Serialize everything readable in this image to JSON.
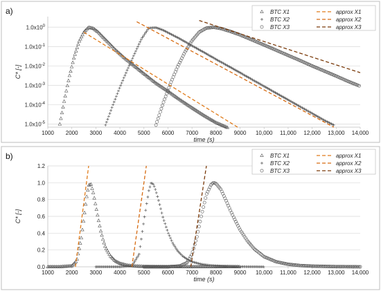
{
  "chart_data": [
    {
      "panel": "a)",
      "type": "scatter",
      "xlabel": "time (s)",
      "ylabel": "C* [-]",
      "xlim": [
        1000,
        14000
      ],
      "x_ticks": [
        1000,
        2000,
        3000,
        4000,
        5000,
        6000,
        7000,
        8000,
        9000,
        10000,
        11000,
        12000,
        13000,
        14000
      ],
      "x_tick_labels": [
        "1000",
        "2000",
        "3000",
        "4000",
        "5000",
        "6000",
        "7000",
        "8000",
        "9000",
        "10,000",
        "11,000",
        "12,000",
        "13,000",
        "14,000"
      ],
      "y_scale": "log",
      "ylim": [
        7e-06,
        3.5
      ],
      "y_ticks": [
        1e-05,
        0.0001,
        0.001,
        0.01,
        0.1,
        1
      ],
      "y_tick_labels": [
        {
          "base": "1.0x10",
          "exp": "-5"
        },
        {
          "base": "1.0x10",
          "exp": "-4"
        },
        {
          "base": "1.0x10",
          "exp": "-3"
        },
        {
          "base": "1.0x10",
          "exp": "-2"
        },
        {
          "base": "1.0x10",
          "exp": "-1"
        },
        {
          "base": "1.0x10",
          "exp": "0"
        }
      ],
      "grid": "horizontal",
      "legend_position": "top-right",
      "series": [
        {
          "name": "BTC X1",
          "kind": "markers",
          "marker": "triangle",
          "color": "#555555",
          "x": [
            1500,
            1700,
            1900,
            2100,
            2300,
            2500,
            2700,
            2900,
            3100,
            3300,
            3500,
            3800,
            4200,
            4600,
            5000,
            5500,
            6000,
            6500,
            7000,
            7500,
            8000,
            8500,
            8900
          ],
          "y": [
            1e-05,
            0.0002,
            0.003,
            0.03,
            0.18,
            0.55,
            0.98,
            0.85,
            0.55,
            0.3,
            0.17,
            0.07,
            0.025,
            0.01,
            0.004,
            0.0013,
            0.0005,
            0.00018,
            7e-05,
            2.8e-05,
            1.2e-05,
            6.5e-06,
            5e-06
          ]
        },
        {
          "name": "BTC X2",
          "kind": "markers",
          "marker": "plus",
          "color": "#555555",
          "x": [
            3400,
            3700,
            4000,
            4300,
            4600,
            4900,
            5200,
            5500,
            5800,
            6100,
            6500,
            7000,
            7500,
            8000,
            8500,
            9000,
            9500,
            10000,
            10500,
            11000,
            11500,
            12000,
            12500,
            12900
          ],
          "y": [
            9e-06,
            9e-05,
            0.0008,
            0.006,
            0.04,
            0.25,
            0.9,
            0.95,
            0.7,
            0.45,
            0.25,
            0.11,
            0.05,
            0.022,
            0.01,
            0.0045,
            0.002,
            0.0009,
            0.0004,
            0.00018,
            8e-05,
            3.6e-05,
            1.6e-05,
            9e-06
          ]
        },
        {
          "name": "BTC X3",
          "kind": "markers",
          "marker": "circle",
          "color": "#555555",
          "x": [
            5500,
            5800,
            6100,
            6400,
            6700,
            7000,
            7300,
            7600,
            7900,
            8200,
            8600,
            9000,
            9500,
            10000,
            10500,
            11000,
            11500,
            12000,
            12500,
            13000,
            13500,
            14000
          ],
          "y": [
            9e-06,
            0.00012,
            0.0012,
            0.009,
            0.05,
            0.2,
            0.55,
            0.9,
            0.98,
            0.85,
            0.6,
            0.4,
            0.22,
            0.12,
            0.065,
            0.035,
            0.019,
            0.01,
            0.0055,
            0.003,
            0.0016,
            0.0009
          ]
        },
        {
          "name": "approx X1",
          "kind": "dashed",
          "color": "#e07b1a",
          "x": [
            2500,
            8900
          ],
          "y": [
            0.55,
            6e-06
          ]
        },
        {
          "name": "approx X2",
          "kind": "dashed",
          "color": "#d66a10",
          "x": [
            4700,
            12900
          ],
          "y": [
            1.9,
            7e-06
          ]
        },
        {
          "name": "approx X3",
          "kind": "dashed",
          "color": "#7a3a0a",
          "x": [
            7300,
            14000
          ],
          "y": [
            2.2,
            0.0045
          ]
        }
      ]
    },
    {
      "panel": "b)",
      "type": "scatter",
      "xlabel": "time (s)",
      "ylabel": "C* [-]",
      "xlim": [
        1000,
        14000
      ],
      "x_ticks": [
        1000,
        2000,
        3000,
        4000,
        5000,
        6000,
        7000,
        8000,
        9000,
        10000,
        11000,
        12000,
        13000,
        14000
      ],
      "x_tick_labels": [
        "1000",
        "2000",
        "3000",
        "4000",
        "5000",
        "6000",
        "7000",
        "8000",
        "9000",
        "10,000",
        "11,000",
        "12,000",
        "13,000",
        "14,000"
      ],
      "y_scale": "linear",
      "ylim": [
        0,
        1.2
      ],
      "y_ticks": [
        0,
        0.2,
        0.4,
        0.6,
        0.8,
        1.0,
        1.2
      ],
      "y_tick_labels": [
        "0.0",
        "0.2",
        "0.4",
        "0.6",
        "0.8",
        "1.0",
        "1.2"
      ],
      "grid": "horizontal",
      "legend_position": "top-right",
      "series": [
        {
          "name": "BTC X1",
          "kind": "markers",
          "marker": "triangle",
          "color": "#555555",
          "x": [
            1000,
            1500,
            2000,
            2200,
            2400,
            2600,
            2700,
            2800,
            2900,
            3000,
            3100,
            3200,
            3300,
            3400,
            3600,
            3800,
            4000,
            4300,
            4600,
            5000,
            5500,
            6000,
            7000,
            8000,
            9000
          ],
          "y": [
            0,
            0,
            0.01,
            0.07,
            0.35,
            0.8,
            0.97,
            0.98,
            0.87,
            0.72,
            0.57,
            0.43,
            0.32,
            0.23,
            0.13,
            0.07,
            0.04,
            0.018,
            0.008,
            0.003,
            0.001,
            0,
            0,
            0,
            0
          ]
        },
        {
          "name": "BTC X2",
          "kind": "markers",
          "marker": "plus",
          "color": "#555555",
          "x": [
            3000,
            4000,
            4500,
            4800,
            5000,
            5200,
            5300,
            5400,
            5500,
            5600,
            5700,
            5800,
            6000,
            6200,
            6400,
            6600,
            6800,
            7000,
            7400,
            7800,
            8200,
            9000,
            10000
          ],
          "y": [
            0,
            0,
            0.01,
            0.15,
            0.55,
            0.9,
            1.0,
            0.98,
            0.9,
            0.8,
            0.69,
            0.58,
            0.41,
            0.28,
            0.19,
            0.13,
            0.09,
            0.06,
            0.03,
            0.015,
            0.008,
            0.002,
            0
          ]
        },
        {
          "name": "BTC X3",
          "kind": "markers",
          "marker": "circle",
          "color": "#555555",
          "x": [
            5000,
            6000,
            6500,
            6800,
            7000,
            7200,
            7400,
            7600,
            7800,
            7900,
            8000,
            8200,
            8400,
            8600,
            8800,
            9000,
            9300,
            9600,
            10000,
            10500,
            11000,
            11500,
            12000,
            13000,
            14000
          ],
          "y": [
            0,
            0,
            0.01,
            0.05,
            0.15,
            0.35,
            0.62,
            0.86,
            0.98,
            1.0,
            0.99,
            0.92,
            0.8,
            0.67,
            0.55,
            0.44,
            0.31,
            0.21,
            0.12,
            0.06,
            0.03,
            0.015,
            0.008,
            0.002,
            0
          ]
        },
        {
          "name": "approx X1",
          "kind": "dashed",
          "color": "#e07b1a",
          "x": [
            2150,
            2700
          ],
          "y": [
            0,
            1.22
          ]
        },
        {
          "name": "approx X2",
          "kind": "dashed",
          "color": "#d66a10",
          "x": [
            4500,
            5100
          ],
          "y": [
            0,
            1.22
          ]
        },
        {
          "name": "approx X3",
          "kind": "dashed",
          "color": "#7a3a0a",
          "x": [
            6950,
            7600
          ],
          "y": [
            0,
            1.22
          ]
        }
      ]
    }
  ]
}
